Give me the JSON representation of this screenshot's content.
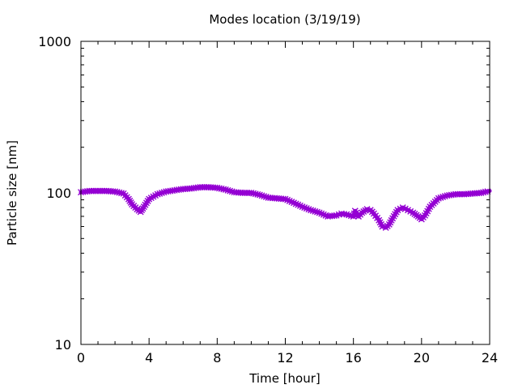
{
  "chart_data": {
    "type": "line",
    "title": "Modes location (3/19/19)",
    "xlabel": "Time [hour]",
    "ylabel": "Particle size [nm]",
    "xlim": [
      0,
      24
    ],
    "ylim": [
      10,
      1000
    ],
    "yscale": "log",
    "x_ticks": [
      0,
      4,
      8,
      12,
      16,
      20,
      24
    ],
    "x_tick_labels": [
      "0",
      "4",
      "8",
      "12",
      "16",
      "20",
      "24"
    ],
    "y_ticks": [
      10,
      100,
      1000
    ],
    "y_tick_labels": [
      "10",
      "100",
      "1000"
    ],
    "grid": false,
    "legend": "none",
    "series": [
      {
        "color": "#9400d3",
        "marker": "cross",
        "x": [
          0,
          0.5,
          1,
          1.5,
          2,
          2.5,
          2.8,
          3,
          3.3,
          3.5,
          3.7,
          4,
          4.5,
          5,
          5.5,
          6,
          6.5,
          7,
          7.5,
          8,
          8.5,
          9,
          9.5,
          10,
          10.5,
          11,
          11.5,
          12,
          12.5,
          13,
          13.5,
          14,
          14.5,
          15,
          15.3,
          15.6,
          16,
          16.1,
          16.2,
          16.3,
          16.5,
          16.8,
          17,
          17.2,
          17.5,
          17.7,
          17.9,
          18.1,
          18.3,
          18.6,
          18.9,
          19.2,
          19.5,
          19.8,
          20,
          20.2,
          20.5,
          21,
          21.5,
          22,
          22.5,
          23,
          23.5,
          24
        ],
        "y": [
          101,
          103,
          103,
          103,
          102,
          99,
          91,
          84,
          78,
          75,
          81,
          91,
          98,
          102,
          104,
          106,
          107,
          109,
          109,
          108,
          105,
          101,
          100,
          100,
          97,
          93,
          92,
          91,
          86,
          81,
          77,
          74,
          70,
          71,
          73,
          72,
          70,
          76,
          71,
          70,
          74,
          78,
          77,
          73,
          66,
          60,
          59,
          62,
          68,
          77,
          80,
          77,
          74,
          70,
          67,
          71,
          81,
          92,
          96,
          98,
          98,
          99,
          100,
          103
        ]
      }
    ]
  }
}
